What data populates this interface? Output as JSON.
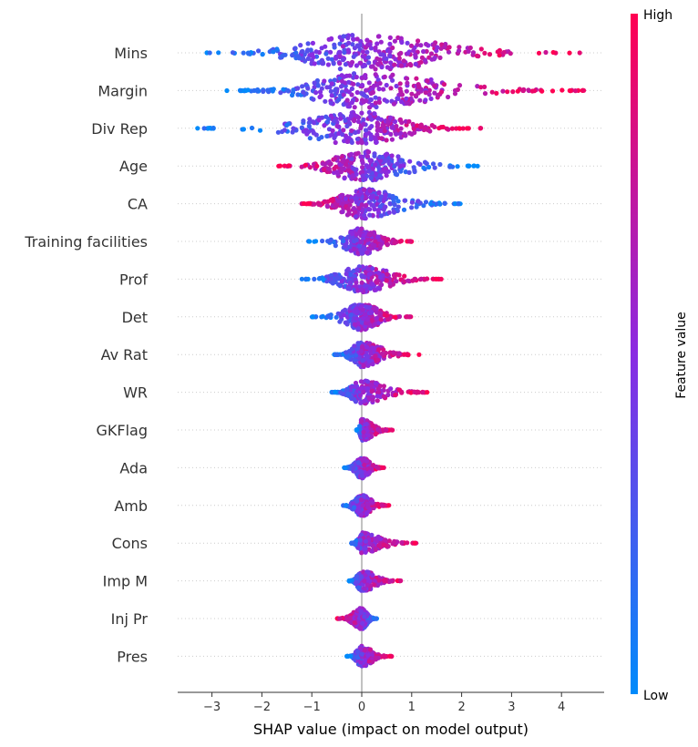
{
  "chart_data": {
    "type": "scatter",
    "subtype": "beeswarm",
    "title": "",
    "xlabel": "SHAP value (impact on model output)",
    "xlim": [
      -3.7,
      4.85
    ],
    "xticks": [
      -3,
      -2,
      -1,
      0,
      1,
      2,
      3,
      4
    ],
    "xtick_labels": [
      "−3",
      "−2",
      "−1",
      "0",
      "1",
      "2",
      "3",
      "4"
    ],
    "colorbar": {
      "label": "Feature value",
      "high_label": "High",
      "low_label": "Low",
      "high_color": "#ff0052",
      "mid_color": "#8a2be2",
      "low_color": "#008bfb"
    },
    "features": [
      {
        "name": "Mins",
        "min": -3.1,
        "max": 4.4,
        "spread": 1.0,
        "direction": 1
      },
      {
        "name": "Margin",
        "min": -2.7,
        "max": 4.5,
        "spread": 0.95,
        "direction": 1
      },
      {
        "name": "Div Rep",
        "min": -3.3,
        "max": 2.4,
        "spread": 0.85,
        "direction": 1
      },
      {
        "name": "Age",
        "min": -1.7,
        "max": 2.4,
        "spread": 0.75,
        "direction": -1
      },
      {
        "name": "CA",
        "min": -1.2,
        "max": 2.0,
        "spread": 0.75,
        "direction": -1
      },
      {
        "name": "Training facilities",
        "min": -1.1,
        "max": 1.0,
        "spread": 0.6,
        "direction": 1
      },
      {
        "name": "Prof",
        "min": -1.2,
        "max": 1.6,
        "spread": 0.6,
        "direction": 1
      },
      {
        "name": "Det",
        "min": -1.0,
        "max": 1.0,
        "spread": 0.6,
        "direction": 1
      },
      {
        "name": "Av Rat",
        "min": -0.55,
        "max": 1.15,
        "spread": 0.55,
        "direction": 1
      },
      {
        "name": "WR",
        "min": -0.6,
        "max": 1.35,
        "spread": 0.5,
        "direction": 1
      },
      {
        "name": "GKFlag",
        "min": -0.1,
        "max": 0.65,
        "spread": 0.4,
        "direction": 1
      },
      {
        "name": "Ada",
        "min": -0.35,
        "max": 0.45,
        "spread": 0.4,
        "direction": 1
      },
      {
        "name": "Amb",
        "min": -0.4,
        "max": 0.55,
        "spread": 0.4,
        "direction": 1
      },
      {
        "name": "Cons",
        "min": -0.2,
        "max": 1.1,
        "spread": 0.4,
        "direction": 1
      },
      {
        "name": "Imp M",
        "min": -0.25,
        "max": 0.8,
        "spread": 0.4,
        "direction": 1
      },
      {
        "name": "Inj Pr",
        "min": -0.5,
        "max": 0.3,
        "spread": 0.4,
        "direction": -1
      },
      {
        "name": "Pres",
        "min": -0.3,
        "max": 0.6,
        "spread": 0.4,
        "direction": 1
      }
    ]
  }
}
